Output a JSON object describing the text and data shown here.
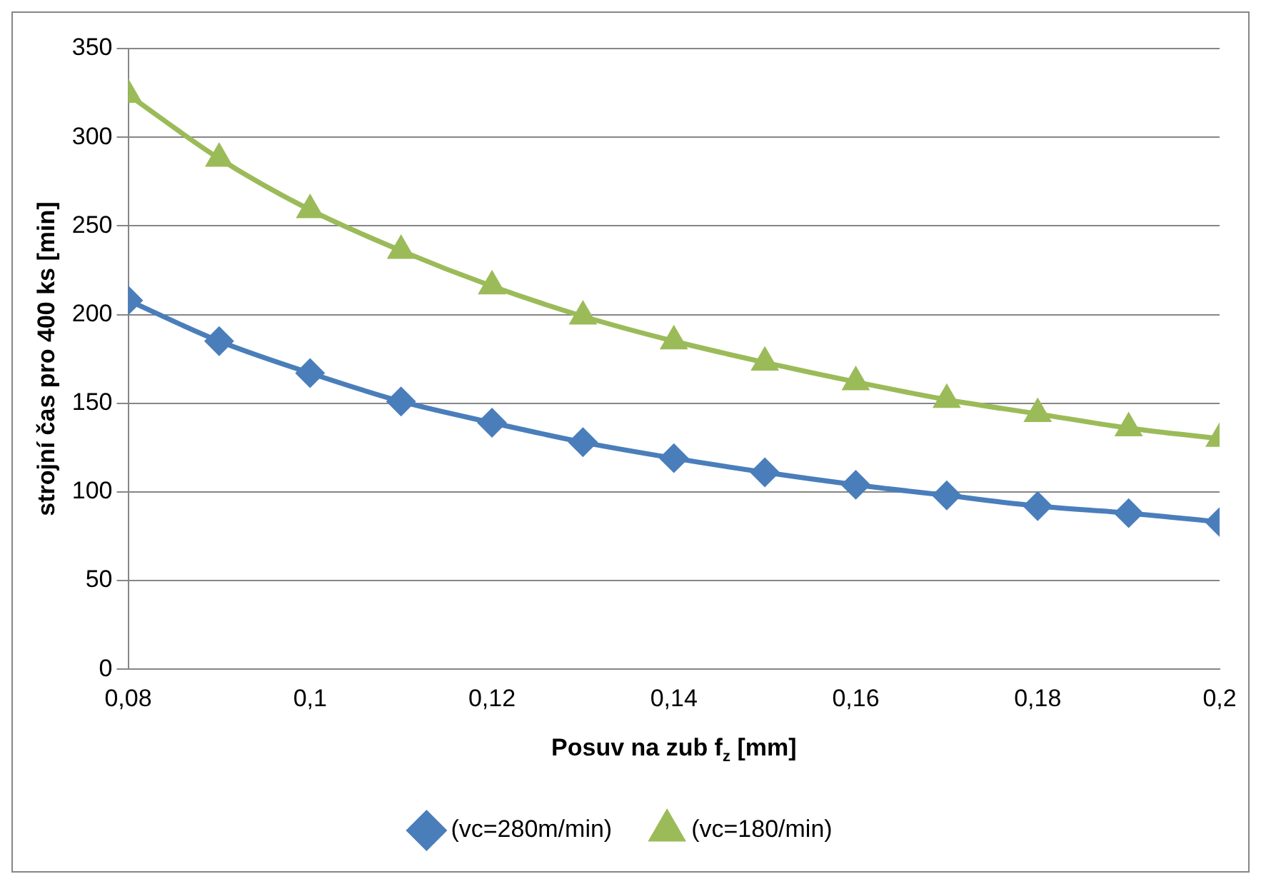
{
  "chart_data": {
    "type": "line",
    "xlabel": "Posuv na zub f$_{z}$ [mm]",
    "ylabel": "strojní čas pro 400 ks [min]",
    "x": [
      0.08,
      0.09,
      0.1,
      0.11,
      0.12,
      0.13,
      0.14,
      0.15,
      0.16,
      0.17,
      0.18,
      0.19,
      0.2
    ],
    "series": [
      {
        "name": "(vc=280m/min)",
        "color": "#4a7ebb",
        "marker": "diamond",
        "values": [
          208,
          185,
          167,
          151,
          139,
          128,
          119,
          111,
          104,
          98,
          92,
          88,
          83
        ]
      },
      {
        "name": "(vc=180/min)",
        "color": "#9bbb59",
        "marker": "triangle",
        "values": [
          324,
          288,
          259,
          236,
          216,
          199,
          185,
          173,
          162,
          152,
          144,
          136,
          130
        ]
      }
    ],
    "xlim": [
      0.08,
      0.2
    ],
    "xticks": [
      {
        "value": 0.08,
        "label": "0,08"
      },
      {
        "value": 0.1,
        "label": "0,1"
      },
      {
        "value": 0.12,
        "label": "0,12"
      },
      {
        "value": 0.14,
        "label": "0,14"
      },
      {
        "value": 0.16,
        "label": "0,16"
      },
      {
        "value": 0.18,
        "label": "0,18"
      },
      {
        "value": 0.2,
        "label": "0,2"
      }
    ],
    "ylim": [
      0,
      350
    ],
    "yticks": [
      0,
      50,
      100,
      150,
      200,
      250,
      300,
      350
    ],
    "grid": "y",
    "legend": "bottom",
    "line_style": "solid"
  }
}
